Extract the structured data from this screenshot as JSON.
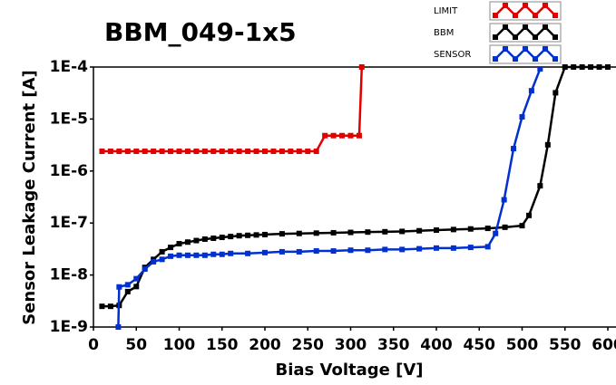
{
  "chart_data": {
    "type": "line",
    "title": "BBM_049-1x5",
    "x_label": "Bias Voltage [V]",
    "y_label": "Sensor Leakage Current [A]",
    "xlim": [
      0,
      600
    ],
    "xticks": [
      0,
      50,
      100,
      150,
      200,
      250,
      300,
      350,
      400,
      450,
      500,
      550,
      600
    ],
    "ylim": [
      1e-09,
      0.0001
    ],
    "log_y": true,
    "grid": false,
    "legend": "top-right",
    "yticks": [
      {
        "value": 1e-09,
        "label": "1E-9"
      },
      {
        "value": 1e-08,
        "label": "1E-8"
      },
      {
        "value": 1e-07,
        "label": "1E-7"
      },
      {
        "value": 1e-06,
        "label": "1E-6"
      },
      {
        "value": 1e-05,
        "label": "1E-5"
      },
      {
        "value": 0.0001,
        "label": "1E-4"
      }
    ],
    "series": [
      {
        "name": "LIMIT",
        "color": "#e00000",
        "x": [
          10,
          20,
          30,
          40,
          50,
          60,
          70,
          80,
          90,
          100,
          110,
          120,
          130,
          140,
          150,
          160,
          170,
          180,
          190,
          200,
          210,
          220,
          230,
          240,
          250,
          260,
          270,
          280,
          290,
          300,
          310,
          313
        ],
        "values": [
          2.4e-06,
          2.4e-06,
          2.4e-06,
          2.4e-06,
          2.4e-06,
          2.4e-06,
          2.4e-06,
          2.4e-06,
          2.4e-06,
          2.4e-06,
          2.4e-06,
          2.4e-06,
          2.4e-06,
          2.4e-06,
          2.4e-06,
          2.4e-06,
          2.4e-06,
          2.4e-06,
          2.4e-06,
          2.4e-06,
          2.4e-06,
          2.4e-06,
          2.4e-06,
          2.4e-06,
          2.4e-06,
          2.4e-06,
          4.8e-06,
          4.8e-06,
          4.8e-06,
          4.8e-06,
          4.8e-06,
          0.0001
        ]
      },
      {
        "name": "BBM",
        "color": "#000000",
        "x": [
          10,
          20,
          30,
          40,
          50,
          60,
          70,
          80,
          90,
          100,
          110,
          120,
          130,
          140,
          150,
          160,
          170,
          180,
          190,
          200,
          220,
          240,
          260,
          280,
          300,
          320,
          340,
          360,
          380,
          400,
          420,
          440,
          460,
          480,
          500,
          508,
          521,
          530,
          539,
          550,
          560,
          570,
          580,
          590,
          600
        ],
        "values": [
          2.5e-09,
          2.5e-09,
          2.6e-09,
          4.8e-09,
          6e-09,
          1.4e-08,
          2e-08,
          2.8e-08,
          3.4e-08,
          4e-08,
          4.3e-08,
          4.6e-08,
          4.9e-08,
          5.1e-08,
          5.3e-08,
          5.5e-08,
          5.7e-08,
          5.8e-08,
          5.9e-08,
          6e-08,
          6.2e-08,
          6.3e-08,
          6.4e-08,
          6.5e-08,
          6.6e-08,
          6.7e-08,
          6.8e-08,
          6.9e-08,
          7.1e-08,
          7.3e-08,
          7.5e-08,
          7.7e-08,
          7.9e-08,
          8.3e-08,
          8.9e-08,
          1.4e-07,
          5.2e-07,
          3.2e-06,
          3.2e-05,
          0.0001,
          0.0001,
          0.0001,
          0.0001,
          0.0001,
          0.0001
        ]
      },
      {
        "name": "SENSOR",
        "color": "#0030d0",
        "x": [
          29,
          30,
          40,
          50,
          60,
          70,
          80,
          90,
          100,
          110,
          120,
          130,
          140,
          150,
          160,
          180,
          200,
          220,
          240,
          260,
          280,
          300,
          320,
          340,
          360,
          380,
          400,
          420,
          440,
          460,
          469,
          479,
          490,
          500,
          511,
          521
        ],
        "values": [
          1e-09,
          5.9e-09,
          6.5e-09,
          8.5e-09,
          1.3e-08,
          1.8e-08,
          2e-08,
          2.3e-08,
          2.4e-08,
          2.4e-08,
          2.4e-08,
          2.4e-08,
          2.5e-08,
          2.5e-08,
          2.6e-08,
          2.6e-08,
          2.7e-08,
          2.8e-08,
          2.8e-08,
          2.9e-08,
          2.9e-08,
          3e-08,
          3e-08,
          3.1e-08,
          3.1e-08,
          3.2e-08,
          3.3e-08,
          3.3e-08,
          3.4e-08,
          3.5e-08,
          6.3e-08,
          2.8e-07,
          2.7e-06,
          1.1e-05,
          3.5e-05,
          9.2e-05
        ]
      }
    ]
  }
}
